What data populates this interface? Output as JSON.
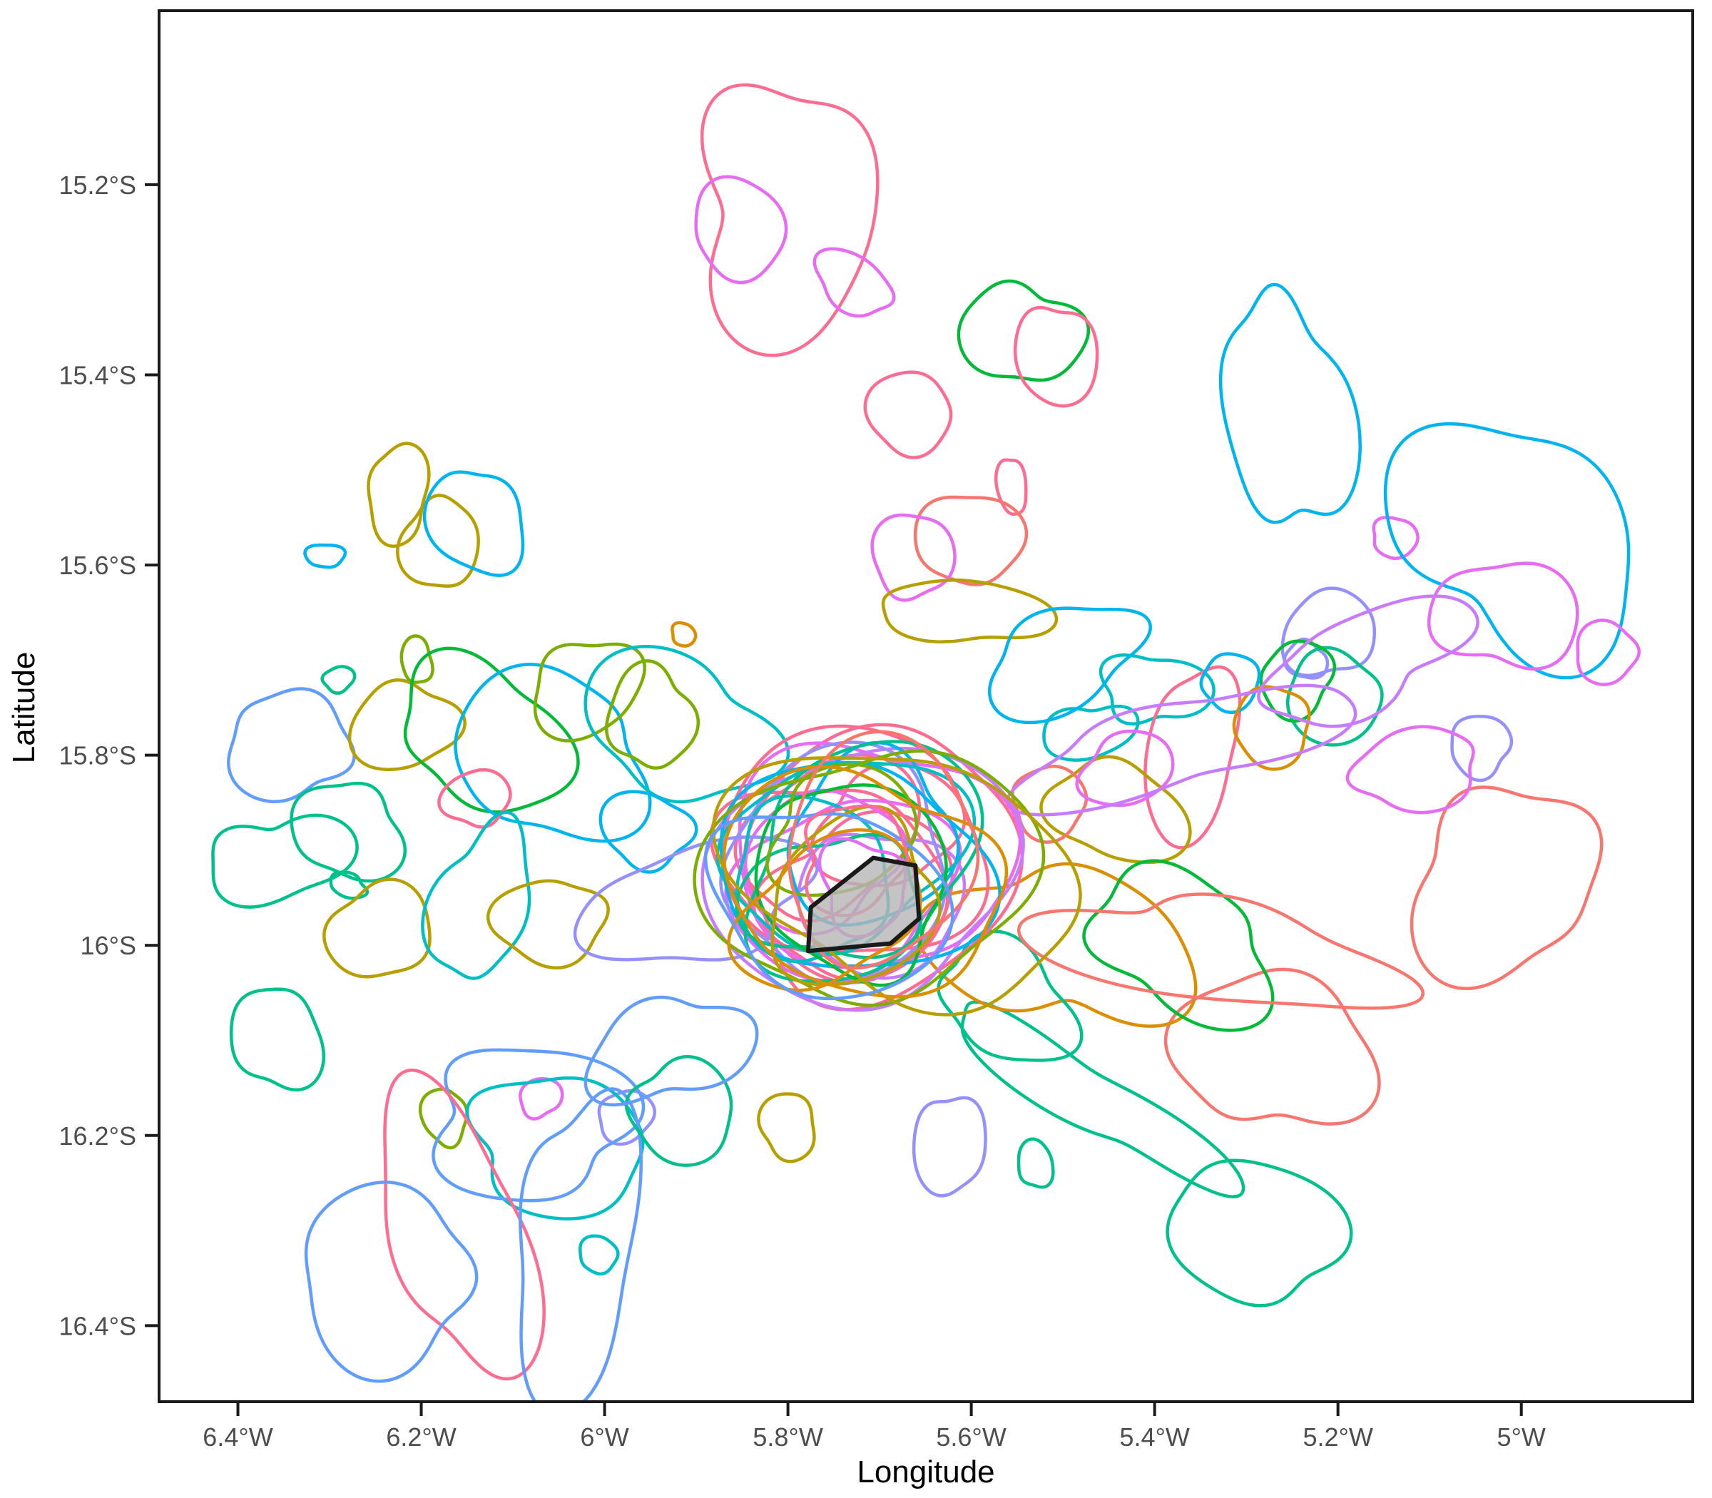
{
  "chart_data": {
    "type": "contour-map",
    "description": "Overlapping kernel home-range contour outlines of many tracked individuals around a central island polygon",
    "xlabel": "Longitude",
    "ylabel": "Latitude",
    "xlim": [
      -6.486,
      -4.813
    ],
    "ylim": [
      -16.48,
      -15.017
    ],
    "grid": false,
    "legend": "none",
    "x_ticks": [
      {
        "value": -6.4,
        "label": "6.4°W"
      },
      {
        "value": -6.2,
        "label": "6.2°W"
      },
      {
        "value": -6.0,
        "label": "6°W"
      },
      {
        "value": -5.8,
        "label": "5.8°W"
      },
      {
        "value": -5.6,
        "label": "5.6°W"
      },
      {
        "value": -5.4,
        "label": "5.4°W"
      },
      {
        "value": -5.2,
        "label": "5.2°W"
      },
      {
        "value": -5.0,
        "label": "5°W"
      }
    ],
    "y_ticks": [
      {
        "value": -15.2,
        "label": "15.2°S"
      },
      {
        "value": -15.4,
        "label": "15.4°S"
      },
      {
        "value": -15.6,
        "label": "15.6°S"
      },
      {
        "value": -15.8,
        "label": "15.8°S"
      },
      {
        "value": -16.0,
        "label": "16°S"
      },
      {
        "value": -16.2,
        "label": "16.2°S"
      },
      {
        "value": -16.4,
        "label": "16.4°S"
      }
    ],
    "palette": {
      "salmon": "#F8766D",
      "orange": "#DB8E00",
      "olive": "#B79F00",
      "applegreen": "#7CAE00",
      "green": "#00BA38",
      "emerald": "#00C08B",
      "cyan": "#00BFC4",
      "azure": "#00B4F0",
      "blue": "#619CFF",
      "periwinkle": "#9590FF",
      "lavender": "#C77CFF",
      "violet": "#E76BF3",
      "pink": "#FF6C91"
    },
    "island": {
      "fill": "#b5b5b5",
      "fill_opacity": 0.8,
      "stroke": "#1a1a1a",
      "stroke_width": 6,
      "vertices": [
        [
          -5.707,
          -15.908
        ],
        [
          -5.661,
          -15.916
        ],
        [
          -5.657,
          -15.972
        ],
        [
          -5.688,
          -15.998
        ],
        [
          -5.778,
          -16.006
        ],
        [
          -5.775,
          -15.96
        ]
      ]
    },
    "contour_fields": [
      "color",
      "center_lon",
      "center_lat",
      "rx_deg",
      "ry_deg",
      "rot_deg",
      "wobble",
      "seed"
    ],
    "contours": [
      [
        "pink",
        -5.8,
        -15.23,
        0.105,
        0.125,
        0,
        0.22,
        101
      ],
      [
        "violet",
        -5.853,
        -15.246,
        0.052,
        0.05,
        0,
        0.1,
        102
      ],
      [
        "violet",
        -5.729,
        -15.303,
        0.048,
        0.027,
        -25,
        0.12,
        103
      ],
      [
        "green",
        -5.546,
        -15.357,
        0.062,
        0.055,
        0,
        0.14,
        104
      ],
      [
        "pink",
        -5.507,
        -15.38,
        0.042,
        0.056,
        10,
        0.1,
        105
      ],
      [
        "pink",
        -5.668,
        -15.44,
        0.047,
        0.042,
        0,
        0.08,
        106
      ],
      [
        "pink",
        -5.556,
        -15.517,
        0.015,
        0.032,
        8,
        0.1,
        107
      ],
      [
        "salmon",
        -5.602,
        -15.572,
        0.056,
        0.05,
        0,
        0.1,
        108
      ],
      [
        "violet",
        -5.664,
        -15.59,
        0.042,
        0.047,
        0,
        0.1,
        109
      ],
      [
        "olive",
        -5.606,
        -15.649,
        0.092,
        0.033,
        -6,
        0.12,
        110
      ],
      [
        "orange",
        -5.914,
        -15.673,
        0.013,
        0.012,
        0,
        0.1,
        111
      ],
      [
        "azure",
        -5.255,
        -15.44,
        0.062,
        0.135,
        8,
        0.18,
        112
      ],
      [
        "violet",
        -5.138,
        -15.571,
        0.026,
        0.02,
        0,
        0.12,
        113
      ],
      [
        "azure",
        -5.005,
        -15.57,
        0.135,
        0.115,
        -20,
        0.22,
        114
      ],
      [
        "violet",
        -5.016,
        -15.652,
        0.077,
        0.058,
        0,
        0.14,
        115
      ],
      [
        "violet",
        -4.908,
        -15.692,
        0.036,
        0.03,
        0,
        0.12,
        116
      ],
      [
        "periwinkle",
        -5.21,
        -15.672,
        0.05,
        0.045,
        0,
        0.12,
        117
      ],
      [
        "periwinkle",
        -5.235,
        -15.7,
        0.022,
        0.02,
        0,
        0.12,
        118
      ],
      [
        "salmon",
        -5.02,
        -15.935,
        0.105,
        0.095,
        15,
        0.18,
        119
      ],
      [
        "periwinkle",
        -5.045,
        -15.79,
        0.035,
        0.03,
        0,
        0.12,
        120
      ],
      [
        "violet",
        -5.115,
        -15.815,
        0.075,
        0.038,
        12,
        0.15,
        121
      ],
      [
        "emerald",
        -5.205,
        -15.74,
        0.055,
        0.045,
        0,
        0.12,
        122
      ],
      [
        "green",
        -5.245,
        -15.72,
        0.04,
        0.038,
        0,
        0.12,
        123
      ],
      [
        "cyan",
        -5.4,
        -15.73,
        0.052,
        0.04,
        0,
        0.22,
        130
      ],
      [
        "pink",
        -5.36,
        -15.8,
        0.05,
        0.09,
        -8,
        0.12,
        131
      ],
      [
        "azure",
        -5.317,
        -15.723,
        0.033,
        0.028,
        0,
        0.1,
        132
      ],
      [
        "orange",
        -5.272,
        -15.77,
        0.043,
        0.04,
        0,
        0.1,
        133
      ],
      [
        "cyan",
        -5.472,
        -15.776,
        0.047,
        0.03,
        15,
        0.15,
        134
      ],
      [
        "olive",
        -5.44,
        -15.86,
        0.07,
        0.055,
        -10,
        0.15,
        135
      ],
      [
        "salmon",
        -5.515,
        -15.85,
        0.042,
        0.036,
        0,
        0.1,
        136
      ],
      [
        "violet",
        -5.43,
        -15.815,
        0.05,
        0.038,
        10,
        0.14,
        137
      ],
      [
        "azure",
        -5.5,
        -15.7,
        0.09,
        0.05,
        15,
        0.2,
        138
      ],
      [
        "olive",
        -6.225,
        -15.525,
        0.034,
        0.05,
        0,
        0.12,
        140
      ],
      [
        "olive",
        -6.18,
        -15.578,
        0.04,
        0.05,
        0,
        0.12,
        141
      ],
      [
        "azure",
        -6.14,
        -15.555,
        0.048,
        0.06,
        20,
        0.15,
        142
      ],
      [
        "azure",
        -6.305,
        -15.59,
        0.02,
        0.013,
        0,
        0.12,
        143
      ],
      [
        "blue",
        -6.345,
        -15.79,
        0.068,
        0.055,
        -15,
        0.18,
        144
      ],
      [
        "emerald",
        -6.29,
        -15.72,
        0.017,
        0.013,
        0,
        0.12,
        145
      ],
      [
        "olive",
        -6.22,
        -15.77,
        0.055,
        0.048,
        0,
        0.16,
        146
      ],
      [
        "applegreen",
        -6.205,
        -15.7,
        0.017,
        0.024,
        0,
        0.12,
        147
      ],
      [
        "green",
        -6.13,
        -15.78,
        0.095,
        0.072,
        -10,
        0.18,
        148
      ],
      [
        "azure",
        -6.06,
        -15.8,
        0.105,
        0.085,
        5,
        0.2,
        149
      ],
      [
        "emerald",
        -6.28,
        -15.88,
        0.058,
        0.052,
        0,
        0.14,
        150
      ],
      [
        "applegreen",
        -6.02,
        -15.73,
        0.06,
        0.05,
        10,
        0.16,
        151
      ],
      [
        "applegreen",
        -5.95,
        -15.76,
        0.045,
        0.055,
        -10,
        0.15,
        152
      ],
      [
        "cyan",
        -5.92,
        -15.77,
        0.1,
        0.075,
        -8,
        0.2,
        153
      ],
      [
        "pink",
        -6.14,
        -15.845,
        0.036,
        0.03,
        0,
        0.1,
        154
      ],
      [
        "emerald",
        -6.355,
        -15.91,
        0.068,
        0.05,
        0,
        0.25,
        155
      ],
      [
        "emerald",
        -6.28,
        -15.937,
        0.021,
        0.012,
        -15,
        0.12,
        156
      ],
      [
        "olive",
        -6.245,
        -15.985,
        0.056,
        0.05,
        0,
        0.12,
        157
      ],
      [
        "emerald",
        -6.357,
        -16.098,
        0.048,
        0.055,
        10,
        0.1,
        158
      ],
      [
        "cyan",
        -6.135,
        -15.955,
        0.05,
        0.085,
        -12,
        0.18,
        159
      ],
      [
        "azure",
        -5.955,
        -15.878,
        0.048,
        0.04,
        0,
        0.14,
        160
      ],
      [
        "olive",
        -6.06,
        -15.975,
        0.06,
        0.045,
        15,
        0.16,
        161
      ],
      [
        "violet",
        -6.07,
        -16.16,
        0.022,
        0.021,
        0,
        0.1,
        170
      ],
      [
        "applegreen",
        -6.175,
        -16.18,
        0.024,
        0.03,
        0,
        0.12,
        171
      ],
      [
        "periwinkle",
        -5.977,
        -16.18,
        0.03,
        0.027,
        0,
        0.1,
        172
      ],
      [
        "cyan",
        -6.05,
        -16.21,
        0.1,
        0.068,
        -5,
        0.18,
        173
      ],
      [
        "blue",
        -6.08,
        -16.185,
        0.115,
        0.075,
        -8,
        0.22,
        174
      ],
      [
        "pink",
        -6.16,
        -16.3,
        0.073,
        0.155,
        15,
        0.15,
        175
      ],
      [
        "blue",
        -6.03,
        -16.32,
        0.068,
        0.155,
        -5,
        0.18,
        176
      ],
      [
        "blue",
        -6.24,
        -16.35,
        0.1,
        0.088,
        5,
        0.15,
        177
      ],
      [
        "cyan",
        -6.007,
        -16.325,
        0.021,
        0.019,
        0,
        0.1,
        178
      ],
      [
        "emerald",
        -5.915,
        -16.175,
        0.06,
        0.05,
        -20,
        0.15,
        179
      ],
      [
        "blue",
        -5.93,
        -16.11,
        0.085,
        0.055,
        20,
        0.2,
        180
      ],
      [
        "olive",
        -5.8,
        -16.19,
        0.031,
        0.034,
        0,
        0.1,
        185
      ],
      [
        "periwinkle",
        -5.624,
        -16.21,
        0.038,
        0.054,
        0,
        0.1,
        186
      ],
      [
        "emerald",
        -5.53,
        -16.23,
        0.02,
        0.024,
        0,
        0.1,
        187
      ],
      [
        "emerald",
        -5.47,
        -16.16,
        0.165,
        0.035,
        -33,
        0.2,
        190
      ],
      [
        "emerald",
        -5.29,
        -16.3,
        0.095,
        0.073,
        -25,
        0.12,
        191
      ],
      [
        "salmon",
        -5.27,
        -16.11,
        0.1,
        0.088,
        10,
        0.18,
        192
      ],
      [
        "orange",
        -5.5,
        -16.0,
        0.125,
        0.09,
        -12,
        0.22,
        193
      ],
      [
        "green",
        -5.37,
        -16.0,
        0.1,
        0.072,
        -15,
        0.2,
        194
      ],
      [
        "emerald",
        -5.56,
        -16.06,
        0.08,
        0.055,
        -18,
        0.16,
        195
      ],
      [
        "salmon",
        -5.33,
        -16.01,
        0.185,
        0.055,
        -12,
        0.2,
        196
      ],
      [
        "lavender",
        -5.37,
        -15.79,
        0.165,
        0.05,
        14,
        0.2,
        200
      ],
      [
        "lavender",
        -5.17,
        -15.7,
        0.115,
        0.05,
        17,
        0.2,
        201
      ],
      [
        "pink",
        -5.73,
        -15.895,
        0.145,
        0.12,
        10,
        0.1,
        1
      ],
      [
        "pink",
        -5.75,
        -15.93,
        0.12,
        0.1,
        -15,
        0.12,
        2
      ],
      [
        "pink",
        -5.7,
        -15.915,
        0.16,
        0.13,
        25,
        0.1,
        3
      ],
      [
        "pink",
        -5.72,
        -15.95,
        0.1,
        0.085,
        0,
        0.15,
        4
      ],
      [
        "pink",
        -5.755,
        -15.885,
        0.095,
        0.08,
        40,
        0.12,
        5
      ],
      [
        "pink",
        -5.69,
        -15.875,
        0.075,
        0.065,
        0,
        0.15,
        6
      ],
      [
        "violet",
        -5.71,
        -15.905,
        0.15,
        0.12,
        -20,
        0.12,
        7
      ],
      [
        "violet",
        -5.74,
        -15.94,
        0.115,
        0.095,
        15,
        0.14,
        8
      ],
      [
        "violet",
        -5.765,
        -15.91,
        0.085,
        0.07,
        0,
        0.12,
        9
      ],
      [
        "lavender",
        -5.72,
        -15.925,
        0.165,
        0.135,
        5,
        0.1,
        10
      ],
      [
        "lavender",
        -5.7,
        -15.955,
        0.09,
        0.075,
        -30,
        0.14,
        11
      ],
      [
        "periwinkle",
        -5.745,
        -15.915,
        0.13,
        0.11,
        30,
        0.12,
        12
      ],
      [
        "periwinkle",
        -5.9,
        -15.955,
        0.125,
        0.06,
        8,
        0.18,
        13
      ],
      [
        "azure",
        -5.73,
        -15.92,
        0.14,
        0.115,
        -10,
        0.12,
        14
      ],
      [
        "azure",
        -5.71,
        -15.89,
        0.1,
        0.08,
        20,
        0.14,
        15
      ],
      [
        "cyan",
        -5.74,
        -15.9,
        0.125,
        0.1,
        0,
        0.14,
        16
      ],
      [
        "cyan",
        -5.775,
        -15.93,
        0.095,
        0.075,
        -25,
        0.14,
        17
      ],
      [
        "emerald",
        -5.72,
        -15.91,
        0.135,
        0.11,
        35,
        0.12,
        18
      ],
      [
        "emerald",
        -5.75,
        -15.95,
        0.09,
        0.07,
        10,
        0.16,
        19
      ],
      [
        "green",
        -5.73,
        -15.93,
        0.115,
        0.09,
        -40,
        0.13,
        20
      ],
      [
        "applegreen",
        -5.71,
        -15.925,
        0.17,
        0.135,
        15,
        0.11,
        21
      ],
      [
        "applegreen",
        -5.74,
        -15.88,
        0.08,
        0.065,
        0,
        0.15,
        22
      ],
      [
        "olive",
        -5.675,
        -15.925,
        0.185,
        0.13,
        -12,
        0.13,
        23
      ],
      [
        "olive",
        -5.73,
        -15.955,
        0.1,
        0.08,
        30,
        0.14,
        24
      ],
      [
        "orange",
        -5.72,
        -15.935,
        0.15,
        0.115,
        -5,
        0.12,
        25
      ],
      [
        "orange",
        -5.755,
        -15.965,
        0.1,
        0.075,
        20,
        0.15,
        26
      ],
      [
        "salmon",
        -5.7,
        -15.9,
        0.12,
        0.1,
        45,
        0.13,
        27
      ],
      [
        "blue",
        -5.755,
        -15.955,
        0.125,
        0.1,
        -35,
        0.13,
        28
      ],
      [
        "pink",
        -5.728,
        -15.908,
        0.062,
        0.05,
        0,
        0.18,
        29
      ],
      [
        "violet",
        -5.718,
        -15.938,
        0.05,
        0.045,
        0,
        0.2,
        30
      ]
    ],
    "style": {
      "contour_stroke_width": 4.5,
      "panel_border_color": "#1a1a1a",
      "tick_label_color": "#4d4d4d",
      "background": "#ffffff"
    }
  }
}
